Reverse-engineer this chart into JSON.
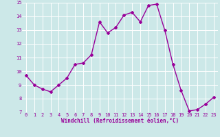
{
  "x": [
    0,
    1,
    2,
    3,
    4,
    5,
    6,
    7,
    8,
    9,
    10,
    11,
    12,
    13,
    14,
    15,
    16,
    17,
    18,
    19,
    20,
    21,
    22,
    23
  ],
  "y": [
    9.7,
    9.0,
    8.7,
    8.5,
    9.0,
    9.5,
    10.5,
    10.6,
    11.2,
    13.6,
    12.8,
    13.2,
    14.1,
    14.3,
    13.6,
    14.8,
    14.9,
    13.0,
    10.5,
    8.6,
    7.1,
    7.2,
    7.6,
    8.1
  ],
  "line_color": "#990099",
  "marker": "D",
  "marker_size": 2.0,
  "bg_color": "#cce8e8",
  "grid_color": "#ffffff",
  "xlabel": "Windchill (Refroidissement éolien,°C)",
  "xlabel_color": "#990099",
  "tick_color": "#990099",
  "ylim": [
    7,
    15
  ],
  "xlim_min": -0.5,
  "xlim_max": 23.5,
  "yticks": [
    7,
    8,
    9,
    10,
    11,
    12,
    13,
    14,
    15
  ],
  "xticks": [
    0,
    1,
    2,
    3,
    4,
    5,
    6,
    7,
    8,
    9,
    10,
    11,
    12,
    13,
    14,
    15,
    16,
    17,
    18,
    19,
    20,
    21,
    22,
    23
  ],
  "tick_fontsize": 5.0,
  "xlabel_fontsize": 5.5,
  "linewidth": 1.0
}
